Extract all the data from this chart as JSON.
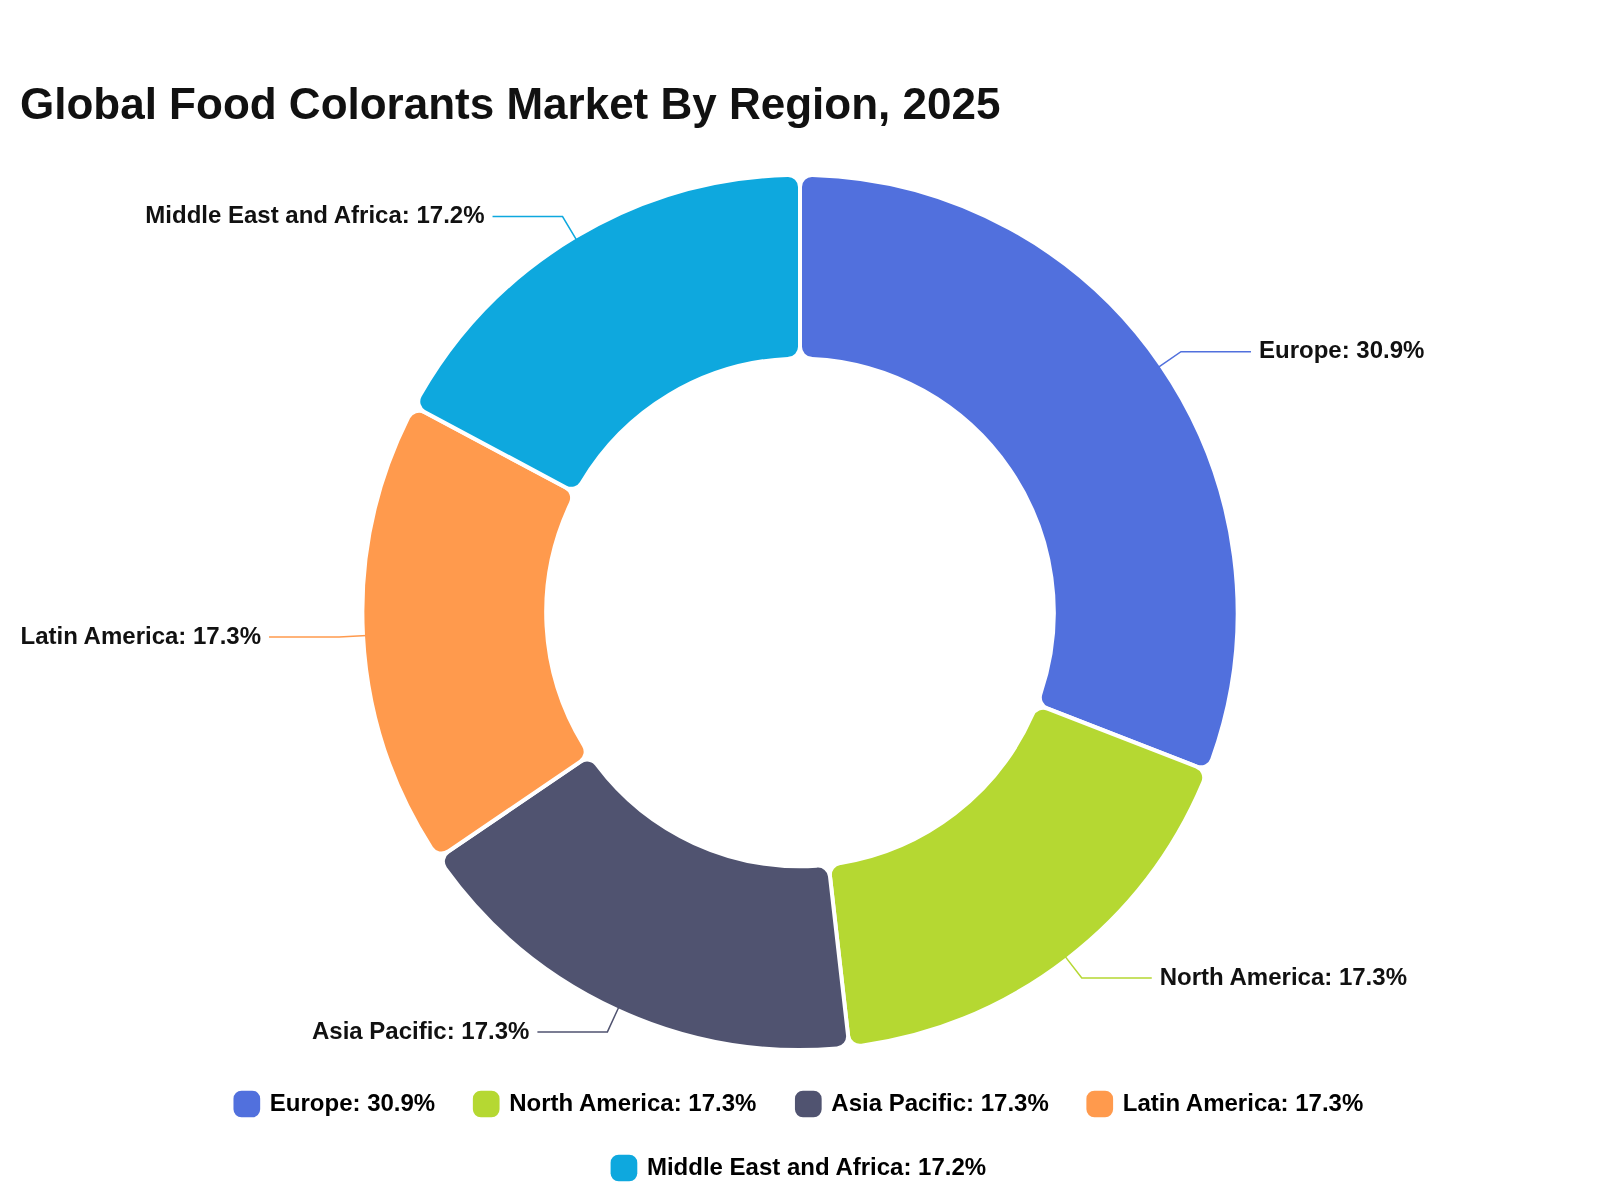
{
  "chart_data": {
    "type": "donut",
    "title": "Global Food Colorants Market By Region, 2025",
    "categories": [
      "Europe",
      "North America",
      "Asia Pacific",
      "Latin America",
      "Middle East and Africa"
    ],
    "values": [
      30.9,
      17.3,
      17.3,
      17.3,
      17.2
    ],
    "value_labels": [
      "30.9%",
      "17.3%",
      "17.3%",
      "17.3%",
      "17.2%"
    ],
    "colors": [
      "#5170dd",
      "#b5d832",
      "#505370",
      "#ff9a4d",
      "#0ea8de"
    ],
    "legend": "bottom"
  }
}
